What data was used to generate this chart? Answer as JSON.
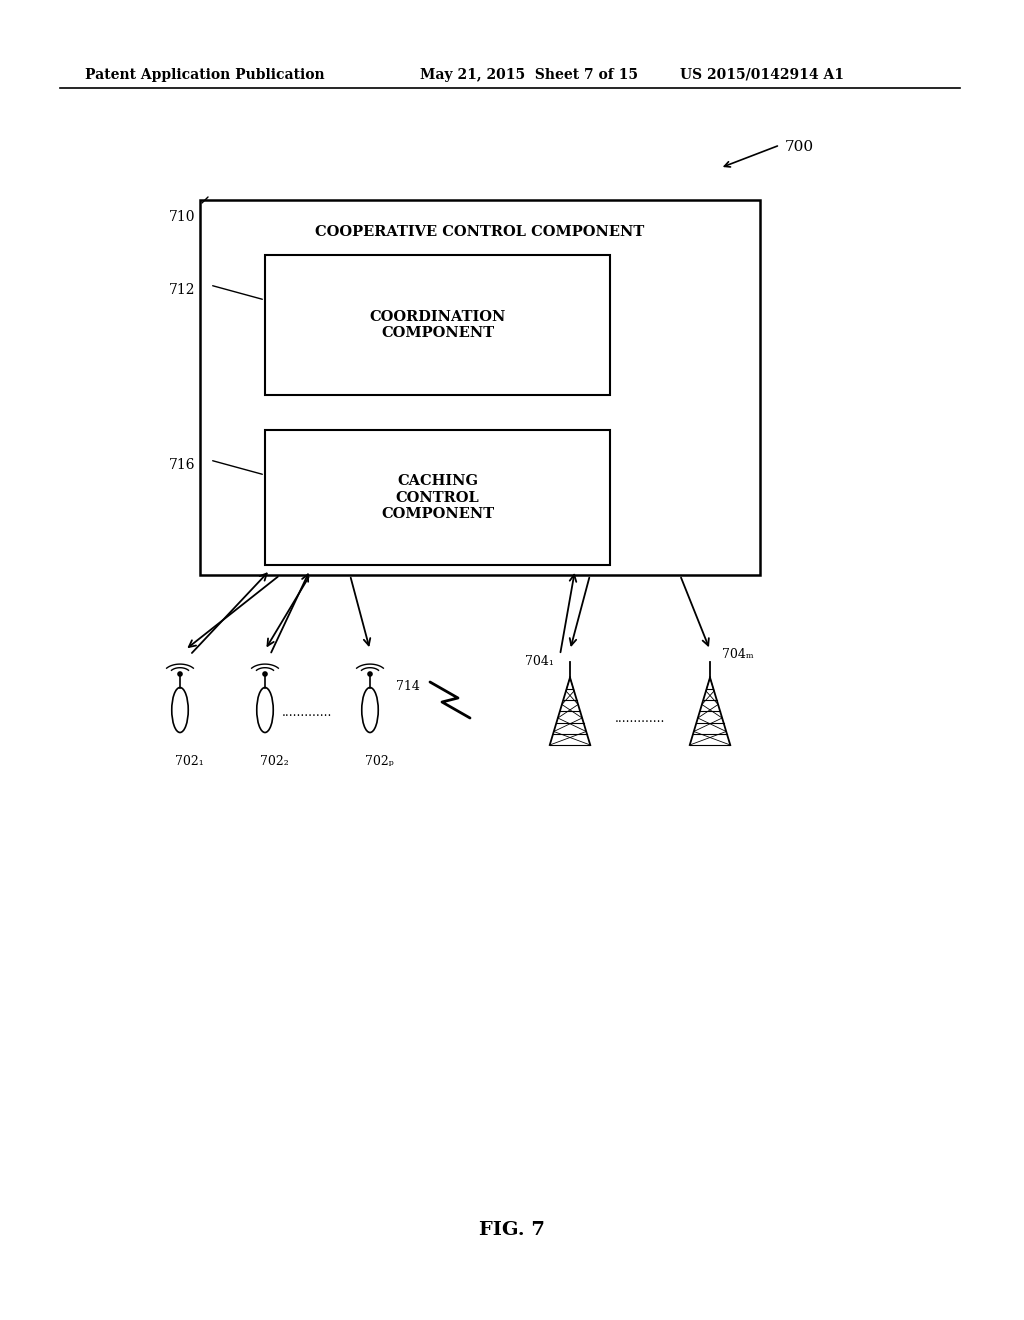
{
  "bg_color": "#ffffff",
  "header_left": "Patent Application Publication",
  "header_mid": "May 21, 2015  Sheet 7 of 15",
  "header_right": "US 2015/0142914 A1",
  "fig_label": "FIG. 7",
  "ref_700": "700",
  "ref_710": "710",
  "ref_712": "712",
  "ref_716": "716",
  "ref_714": "714",
  "label_coop": "COOPERATIVE CONTROL COMPONENT",
  "label_coord": "COORDINATION\nCOMPONENT",
  "label_caching": "CACHING\nCONTROL\nCOMPONENT",
  "label_702_1": "702₁",
  "label_702_2": "702₂",
  "label_702_p": "702ₚ",
  "label_704_1": "704₁",
  "label_704_M": "704ₘ"
}
